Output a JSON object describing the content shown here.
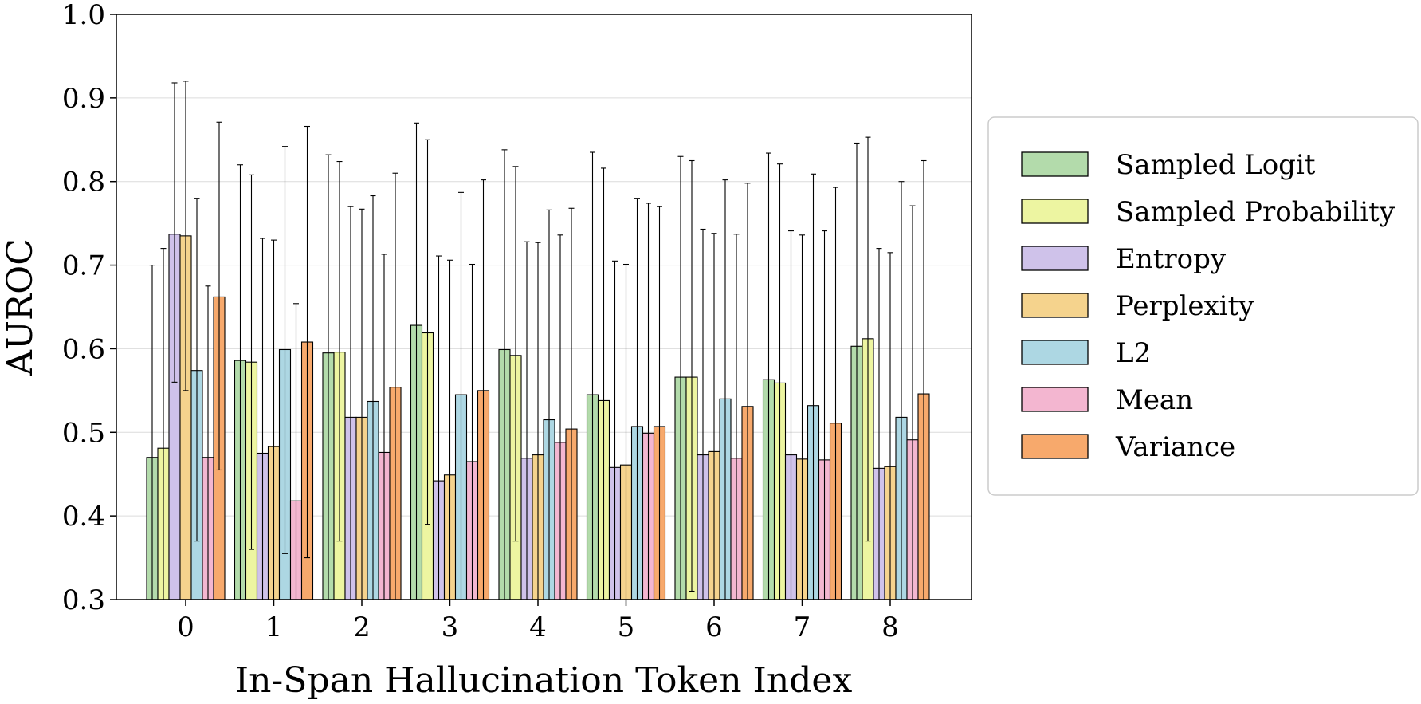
{
  "chart_data": {
    "type": "bar",
    "title": "",
    "xlabel": "In-Span Hallucination Token Index",
    "ylabel": "AUROC",
    "ylim": [
      0.3,
      1.0
    ],
    "yticks": [
      "0.3",
      "0.4",
      "0.5",
      "0.6",
      "0.7",
      "0.8",
      "0.9",
      "1.0"
    ],
    "grid": "y",
    "legend_position": "right",
    "categories": [
      "0",
      "1",
      "2",
      "3",
      "4",
      "5",
      "6",
      "7",
      "8"
    ],
    "series": [
      {
        "name": "Sampled Logit",
        "color": "#b3dbab",
        "values": [
          0.47,
          0.586,
          0.595,
          0.628,
          0.599,
          0.545,
          0.566,
          0.563,
          0.603
        ],
        "err_high": [
          0.7,
          0.82,
          0.832,
          0.87,
          0.838,
          0.835,
          0.83,
          0.834,
          0.846
        ]
      },
      {
        "name": "Sampled Probability",
        "color": "#edf5a1",
        "values": [
          0.481,
          0.584,
          0.596,
          0.619,
          0.592,
          0.538,
          0.566,
          0.559,
          0.612
        ],
        "err_high": [
          0.72,
          0.808,
          0.824,
          0.85,
          0.818,
          0.816,
          0.825,
          0.821,
          0.853
        ],
        "err_low": [
          null,
          0.36,
          0.37,
          0.39,
          0.37,
          null,
          0.31,
          null,
          0.37
        ]
      },
      {
        "name": "Entropy",
        "color": "#cfc2ea",
        "values": [
          0.737,
          0.475,
          0.518,
          0.442,
          0.469,
          0.458,
          0.473,
          0.473,
          0.457
        ],
        "err_high": [
          0.918,
          0.732,
          0.77,
          0.711,
          0.728,
          0.705,
          0.743,
          0.741,
          0.72
        ],
        "err_low": [
          0.56,
          null,
          null,
          null,
          null,
          null,
          null,
          null,
          null
        ]
      },
      {
        "name": "Perplexity",
        "color": "#f5d38d",
        "values": [
          0.735,
          0.483,
          0.518,
          0.449,
          0.473,
          0.461,
          0.477,
          0.468,
          0.459
        ],
        "err_high": [
          0.92,
          0.73,
          0.767,
          0.706,
          0.727,
          0.701,
          0.738,
          0.736,
          0.715
        ],
        "err_low": [
          0.55,
          null,
          null,
          null,
          null,
          null,
          null,
          null,
          null
        ]
      },
      {
        "name": "L2",
        "color": "#add7e3",
        "values": [
          0.574,
          0.599,
          0.537,
          0.545,
          0.515,
          0.507,
          0.54,
          0.532,
          0.518
        ],
        "err_high": [
          0.78,
          0.842,
          0.783,
          0.787,
          0.766,
          0.78,
          0.802,
          0.809,
          0.8
        ],
        "err_low": [
          0.37,
          0.355,
          null,
          null,
          null,
          null,
          null,
          null,
          null
        ]
      },
      {
        "name": "Mean",
        "color": "#f3b6d0",
        "values": [
          0.47,
          0.418,
          0.476,
          0.465,
          0.488,
          0.499,
          0.469,
          0.467,
          0.491
        ],
        "err_high": [
          0.675,
          0.654,
          0.713,
          0.701,
          0.736,
          0.774,
          0.737,
          0.741,
          0.771
        ]
      },
      {
        "name": "Variance",
        "color": "#f7a96c",
        "values": [
          0.662,
          0.608,
          0.554,
          0.55,
          0.504,
          0.507,
          0.531,
          0.511,
          0.546
        ],
        "err_high": [
          0.871,
          0.866,
          0.81,
          0.802,
          0.768,
          0.77,
          0.798,
          0.793,
          0.825
        ],
        "err_low": [
          0.455,
          0.35,
          null,
          null,
          null,
          null,
          null,
          null,
          null
        ]
      }
    ]
  }
}
